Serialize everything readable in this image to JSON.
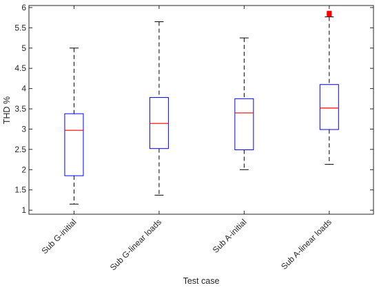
{
  "chart_data": {
    "type": "box",
    "xlabel": "Test case",
    "ylabel": "THD %",
    "ylim": [
      0.9,
      6.05
    ],
    "yticks": [
      1,
      1.5,
      2,
      2.5,
      3,
      3.5,
      4,
      4.5,
      5,
      5.5,
      6
    ],
    "ytick_labels": [
      "1",
      "1.5",
      "2",
      "2.5",
      "3",
      "3.5",
      "4",
      "4.5",
      "5",
      "5.5",
      "6"
    ],
    "categories": [
      "Sub G-initial",
      "Sub G-linear loads",
      "Sub A-initial",
      "Sub A-linear loads"
    ],
    "boxes": [
      {
        "whisker_low": 1.15,
        "q1": 1.85,
        "median": 2.97,
        "q3": 3.38,
        "whisker_high": 5.0,
        "outliers": []
      },
      {
        "whisker_low": 1.37,
        "q1": 2.52,
        "median": 3.14,
        "q3": 3.78,
        "whisker_high": 5.65,
        "outliers": []
      },
      {
        "whisker_low": 2.0,
        "q1": 2.49,
        "median": 3.4,
        "q3": 3.75,
        "whisker_high": 5.25,
        "outliers": []
      },
      {
        "whisker_low": 2.13,
        "q1": 2.99,
        "median": 3.52,
        "q3": 4.1,
        "whisker_high": 5.77,
        "outliers": [
          5.83,
          5.86
        ]
      }
    ],
    "grid": false,
    "legend": "none",
    "colors": {
      "box": "#0000ff",
      "median": "#ff0000",
      "whisker": "#000000",
      "outlier": "#ff0000",
      "axis": "#262626"
    }
  }
}
